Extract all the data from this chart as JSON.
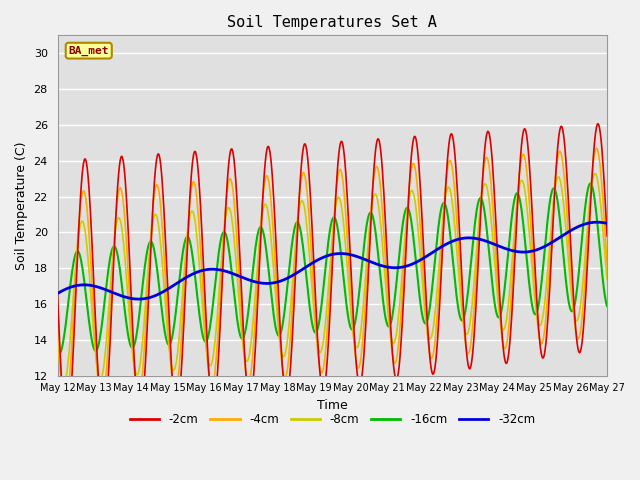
{
  "title": "Soil Temperatures Set A",
  "xlabel": "Time",
  "ylabel": "Soil Temperature (C)",
  "ylim": [
    12,
    31
  ],
  "yticks": [
    12,
    14,
    16,
    18,
    20,
    22,
    24,
    26,
    28,
    30
  ],
  "legend_label": "BA_met",
  "series_labels": [
    "-2cm",
    "-4cm",
    "-8cm",
    "-16cm",
    "-32cm"
  ],
  "series_colors": [
    "#dd0000",
    "#ffaa00",
    "#cccc00",
    "#00bb00",
    "#0000dd"
  ],
  "series_linewidths": [
    1.2,
    1.2,
    1.2,
    1.5,
    2.0
  ],
  "axes_facecolor": "#e0e0e0",
  "fig_facecolor": "#f0f0f0",
  "grid_color": "#ffffff",
  "n_days": 15,
  "start_day": 12,
  "points_per_day": 48
}
